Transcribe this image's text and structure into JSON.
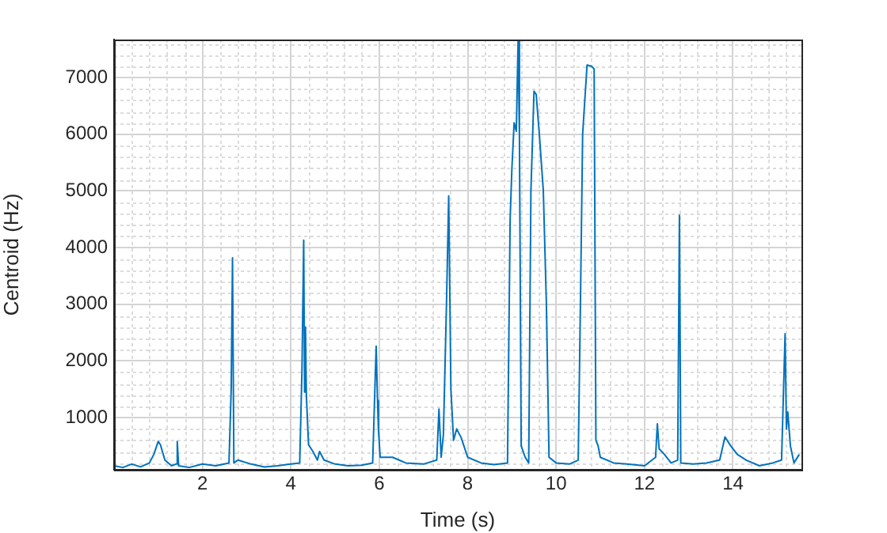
{
  "chart_data": {
    "type": "line",
    "xlabel": "Time (s)",
    "ylabel": "Centroid (Hz)",
    "xlim": [
      0,
      15.55
    ],
    "ylim": [
      80,
      7670
    ],
    "xticks": [
      2,
      4,
      6,
      8,
      10,
      12,
      14
    ],
    "yticks": [
      1000,
      2000,
      3000,
      4000,
      5000,
      6000,
      7000
    ],
    "grid": true,
    "legend": false,
    "marker": "none",
    "line_style": "solid",
    "series": [
      {
        "color": "#0072bd",
        "x": [
          0,
          0.2,
          0.4,
          0.6,
          0.8,
          0.9,
          1.0,
          1.05,
          1.15,
          1.3,
          1.4,
          1.43,
          1.46,
          1.7,
          2.0,
          2.3,
          2.6,
          2.65,
          2.68,
          2.71,
          2.8,
          3.1,
          3.4,
          3.7,
          4.0,
          4.2,
          4.25,
          4.29,
          4.31,
          4.33,
          4.35,
          4.4,
          4.5,
          4.6,
          4.65,
          4.75,
          5.0,
          5.3,
          5.6,
          5.85,
          5.9,
          5.93,
          5.96,
          5.98,
          6.02,
          6.3,
          6.6,
          7.0,
          7.3,
          7.35,
          7.4,
          7.45,
          7.52,
          7.57,
          7.62,
          7.68,
          7.75,
          7.85,
          8.0,
          8.3,
          8.6,
          8.9,
          8.96,
          9.0,
          9.05,
          9.1,
          9.14,
          9.17,
          9.21,
          9.3,
          9.38,
          9.43,
          9.5,
          9.55,
          9.62,
          9.71,
          9.78,
          9.84,
          10.0,
          10.3,
          10.5,
          10.55,
          10.6,
          10.7,
          10.8,
          10.86,
          10.9,
          10.95,
          11.0,
          11.3,
          11.6,
          12.0,
          12.25,
          12.29,
          12.33,
          12.45,
          12.6,
          12.75,
          12.79,
          12.82,
          13.1,
          13.4,
          13.7,
          13.82,
          13.95,
          14.1,
          14.3,
          14.6,
          14.9,
          15.1,
          15.18,
          15.21,
          15.24,
          15.3,
          15.38,
          15.5
        ],
        "values": [
          150,
          120,
          180,
          130,
          200,
          350,
          580,
          520,
          250,
          150,
          180,
          580,
          150,
          120,
          180,
          150,
          200,
          1500,
          3820,
          200,
          250,
          180,
          130,
          150,
          180,
          200,
          1800,
          4130,
          1450,
          2600,
          1400,
          520,
          400,
          250,
          400,
          250,
          180,
          150,
          160,
          200,
          1500,
          2260,
          1300,
          800,
          300,
          300,
          200,
          180,
          250,
          1150,
          300,
          700,
          3000,
          4910,
          1500,
          600,
          800,
          650,
          300,
          200,
          170,
          200,
          4500,
          5400,
          6200,
          6050,
          7650,
          6000,
          500,
          300,
          200,
          5000,
          6760,
          6700,
          6000,
          5010,
          3000,
          300,
          200,
          180,
          250,
          3000,
          6000,
          7220,
          7200,
          7150,
          600,
          500,
          300,
          200,
          180,
          150,
          300,
          890,
          450,
          350,
          200,
          250,
          4570,
          200,
          180,
          200,
          250,
          660,
          500,
          350,
          250,
          150,
          200,
          250,
          2480,
          800,
          1100,
          500,
          200,
          350
        ]
      }
    ]
  }
}
